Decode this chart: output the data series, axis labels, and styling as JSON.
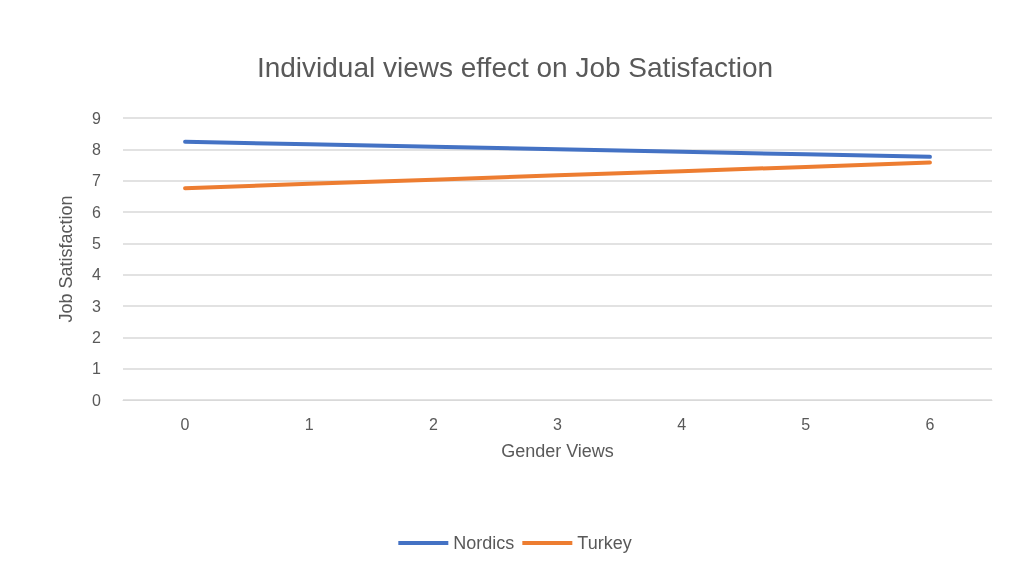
{
  "chart_data": {
    "type": "line",
    "title": "Individual views effect on Job Satisfaction",
    "xlabel": "Gender Views",
    "ylabel": "Job Satisfaction",
    "categories": [
      "0",
      "1",
      "2",
      "3",
      "4",
      "5",
      "6"
    ],
    "series": [
      {
        "name": "Nordics",
        "color": "#4472c4",
        "values": [
          8.24,
          8.16,
          8.08,
          8.0,
          7.92,
          7.84,
          7.76
        ]
      },
      {
        "name": "Turkey",
        "color": "#ed7d31",
        "values": [
          6.76,
          6.9,
          7.03,
          7.17,
          7.3,
          7.44,
          7.58
        ]
      }
    ],
    "ylim": [
      0,
      9
    ],
    "yticks": [
      0,
      1,
      2,
      3,
      4,
      5,
      6,
      7,
      8,
      9
    ],
    "grid": "y",
    "legend": "bottom",
    "marker": "none",
    "line_style": "solid"
  }
}
